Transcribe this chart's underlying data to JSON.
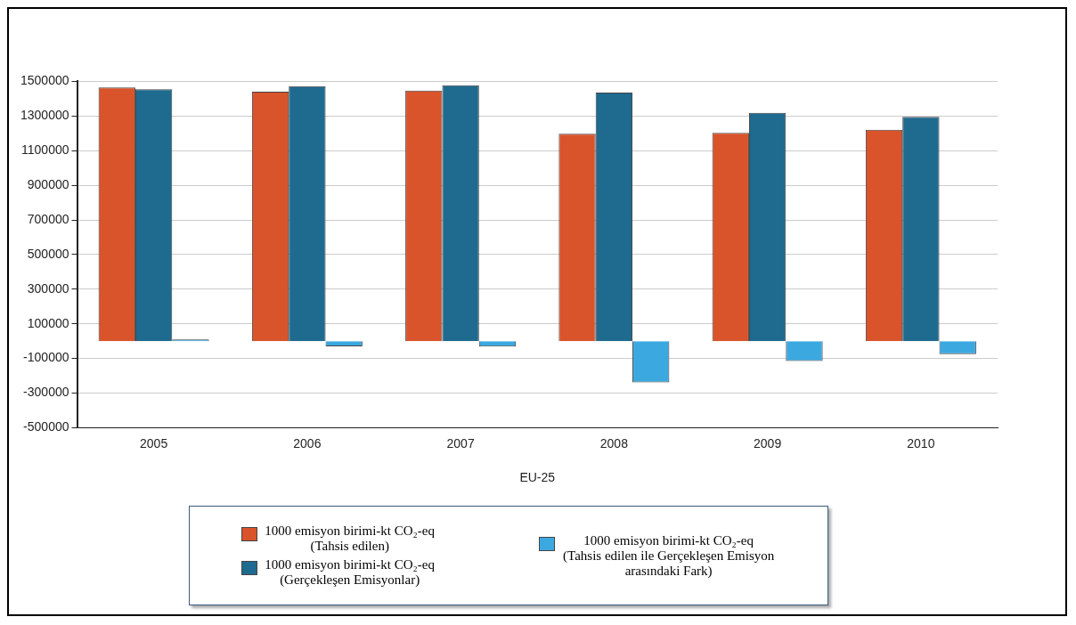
{
  "chart_data": {
    "type": "bar",
    "categories": [
      "2005",
      "2006",
      "2007",
      "2008",
      "2009",
      "2010"
    ],
    "xlabel": "EU-25",
    "series": [
      {
        "name": "1000 emisyon birimi-kt CO₂-eq (Tahsis edilen)",
        "color": "#d9532b",
        "values": [
          1465000,
          1440000,
          1447000,
          1197000,
          1203000,
          1220000
        ]
      },
      {
        "name": "1000 emisyon birimi-kt CO₂-eq (Gerçekleşen Emisyonlar)",
        "color": "#1f6a8f",
        "values": [
          1455000,
          1473000,
          1478000,
          1435000,
          1318000,
          1295000
        ]
      },
      {
        "name": "1000 emisyon birimi-kt CO₂-eq (Tahsis edilen ile Gerçekleşen Emisyon arasındaki Fark)",
        "color": "#3ba9e0",
        "values": [
          10000,
          -30000,
          -31000,
          -238000,
          -115000,
          -75000
        ]
      }
    ],
    "ylim": [
      -500000,
      1500000
    ],
    "yticks": [
      -500000,
      -300000,
      -100000,
      100000,
      300000,
      500000,
      700000,
      900000,
      1100000,
      1300000,
      1500000
    ],
    "grid": "y",
    "legend": "bottom"
  }
}
